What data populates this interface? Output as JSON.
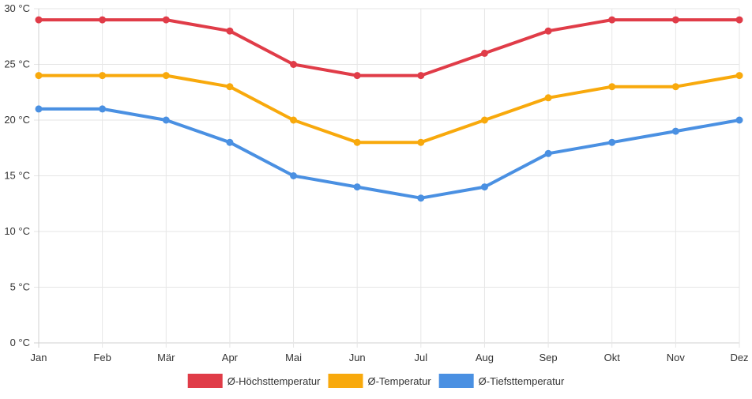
{
  "chart_data": {
    "type": "line",
    "categories": [
      "Jan",
      "Feb",
      "Mär",
      "Apr",
      "Mai",
      "Jun",
      "Jul",
      "Aug",
      "Sep",
      "Okt",
      "Nov",
      "Dez"
    ],
    "series": [
      {
        "name": "Ø-Höchsttemperatur",
        "color": "#e03c48",
        "values": [
          29,
          29,
          29,
          28,
          25,
          24,
          24,
          26,
          28,
          29,
          29,
          29
        ]
      },
      {
        "name": "Ø-Temperatur",
        "color": "#f8a90c",
        "values": [
          24,
          24,
          24,
          23,
          20,
          18,
          18,
          20,
          22,
          23,
          23,
          24
        ]
      },
      {
        "name": "Ø-Tiefsttemperatur",
        "color": "#4a90e2",
        "values": [
          21,
          21,
          20,
          18,
          15,
          14,
          13,
          14,
          17,
          18,
          19,
          20
        ]
      }
    ],
    "yTicks": [
      0,
      5,
      10,
      15,
      20,
      25,
      30
    ],
    "yTickLabels": [
      "0 °C",
      "5 °C",
      "10 °C",
      "15 °C",
      "20 °C",
      "25 °C",
      "30 °C"
    ],
    "ylim": [
      0,
      30
    ],
    "grid": true,
    "legend_position": "bottom"
  }
}
